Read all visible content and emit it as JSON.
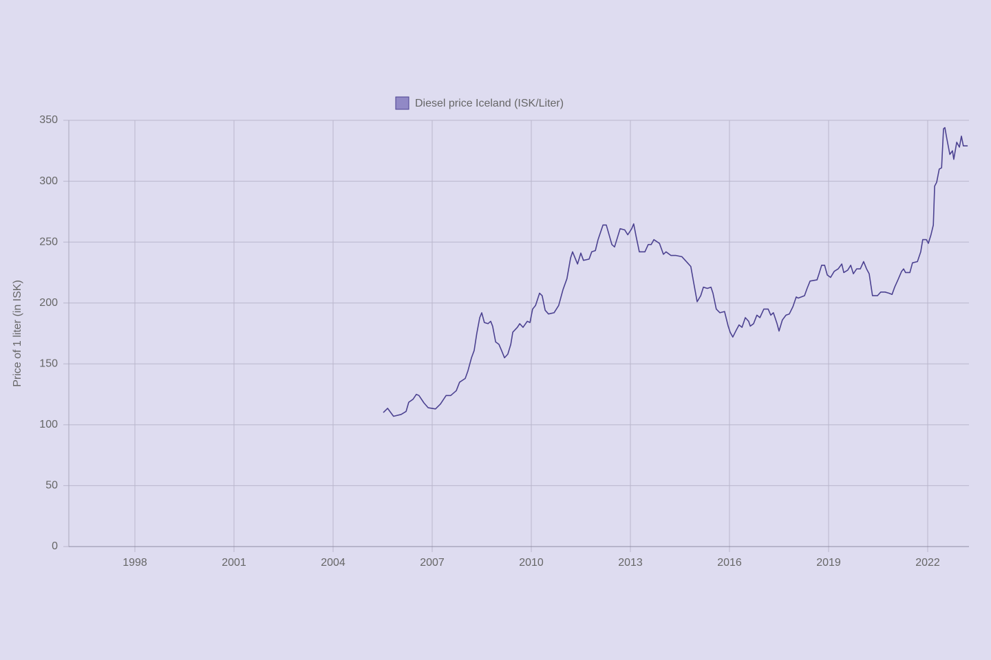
{
  "chart_data": {
    "type": "line",
    "ylabel": "Price of 1 liter (in ISK)",
    "series": [
      {
        "name": "Diesel price Iceland (ISK/Liter)",
        "color": "#4b4190",
        "legend_fill": "#9189c6",
        "x": [
          2005.52,
          2005.65,
          2005.83,
          2006.06,
          2006.21,
          2006.29,
          2006.42,
          2006.52,
          2006.6,
          2006.75,
          2006.88,
          2007.1,
          2007.25,
          2007.42,
          2007.56,
          2007.73,
          2007.83,
          2008.0,
          2008.08,
          2008.19,
          2008.27,
          2008.35,
          2008.44,
          2008.5,
          2008.58,
          2008.69,
          2008.77,
          2008.83,
          2008.92,
          2009.02,
          2009.1,
          2009.19,
          2009.29,
          2009.38,
          2009.44,
          2009.58,
          2009.65,
          2009.75,
          2009.88,
          2009.96,
          2010.04,
          2010.13,
          2010.25,
          2010.33,
          2010.42,
          2010.52,
          2010.69,
          2010.83,
          2010.96,
          2011.08,
          2011.19,
          2011.25,
          2011.4,
          2011.5,
          2011.58,
          2011.75,
          2011.83,
          2011.94,
          2012.02,
          2012.17,
          2012.27,
          2012.44,
          2012.52,
          2012.69,
          2012.83,
          2012.92,
          2013.04,
          2013.1,
          2013.17,
          2013.27,
          2013.44,
          2013.54,
          2013.63,
          2013.71,
          2013.88,
          2014.0,
          2014.08,
          2014.23,
          2014.38,
          2014.56,
          2014.73,
          2014.83,
          2014.92,
          2015.02,
          2015.13,
          2015.21,
          2015.33,
          2015.44,
          2015.5,
          2015.6,
          2015.71,
          2015.85,
          2015.96,
          2016.02,
          2016.1,
          2016.21,
          2016.29,
          2016.38,
          2016.48,
          2016.58,
          2016.63,
          2016.73,
          2016.83,
          2016.92,
          2017.04,
          2017.17,
          2017.25,
          2017.33,
          2017.44,
          2017.5,
          2017.6,
          2017.71,
          2017.81,
          2017.92,
          2018.02,
          2018.08,
          2018.27,
          2018.35,
          2018.44,
          2018.65,
          2018.71,
          2018.79,
          2018.88,
          2018.96,
          2019.06,
          2019.17,
          2019.29,
          2019.4,
          2019.46,
          2019.58,
          2019.67,
          2019.75,
          2019.85,
          2019.96,
          2020.06,
          2020.15,
          2020.23,
          2020.33,
          2020.48,
          2020.58,
          2020.71,
          2020.83,
          2020.92,
          2021.0,
          2021.1,
          2021.21,
          2021.27,
          2021.33,
          2021.46,
          2021.54,
          2021.69,
          2021.79,
          2021.85,
          2021.96,
          2022.02,
          2022.1,
          2022.17,
          2022.21,
          2022.27,
          2022.35,
          2022.42,
          2022.48,
          2022.52,
          2022.58,
          2022.67,
          2022.75,
          2022.79,
          2022.88,
          2022.96,
          2023.02,
          2023.08,
          2023.21
        ],
        "values": [
          110,
          113.5,
          107,
          108.5,
          111,
          118.5,
          121,
          125,
          124,
          118,
          114,
          113,
          117,
          124,
          124,
          128,
          135,
          138,
          144,
          155,
          161,
          175,
          188,
          192,
          184,
          183,
          185,
          181,
          168,
          166,
          161,
          155,
          158,
          166,
          176,
          180,
          183,
          180,
          185,
          184,
          195,
          198,
          208,
          206,
          194,
          191,
          192,
          198,
          211,
          220,
          237,
          242,
          232,
          241,
          235,
          236,
          242,
          243,
          252,
          264,
          264,
          248,
          246,
          261,
          260,
          256,
          261,
          265,
          255,
          242,
          242,
          248,
          248,
          252,
          249,
          240,
          242,
          239,
          239,
          238,
          233,
          230,
          216,
          201,
          206,
          213,
          212,
          213,
          208,
          195,
          192,
          193,
          181,
          176,
          172,
          178,
          182,
          180,
          188,
          185,
          181,
          183,
          190,
          188,
          195,
          195,
          190,
          192,
          183,
          177,
          186,
          190,
          191,
          197,
          205,
          204,
          206,
          212,
          218,
          219,
          224,
          231,
          231,
          223,
          221,
          226,
          228,
          232,
          225,
          227,
          231,
          224,
          228,
          228,
          234,
          228,
          224,
          206,
          206,
          209,
          209,
          208,
          207,
          213,
          219,
          226,
          228,
          225,
          225,
          233,
          234,
          242,
          252,
          252,
          249,
          256,
          264,
          296,
          299,
          310,
          311,
          343,
          344,
          335,
          322,
          325,
          318,
          332,
          328,
          337,
          329,
          329
        ]
      }
    ],
    "xlim": [
      1996,
      2023.25
    ],
    "xticks": [
      1998,
      2001,
      2004,
      2007,
      2010,
      2013,
      2016,
      2019,
      2022
    ],
    "ylim": [
      0,
      350
    ],
    "yticks": [
      0,
      50,
      100,
      150,
      200,
      250,
      300,
      350
    ],
    "grid": true,
    "legend": "top"
  }
}
